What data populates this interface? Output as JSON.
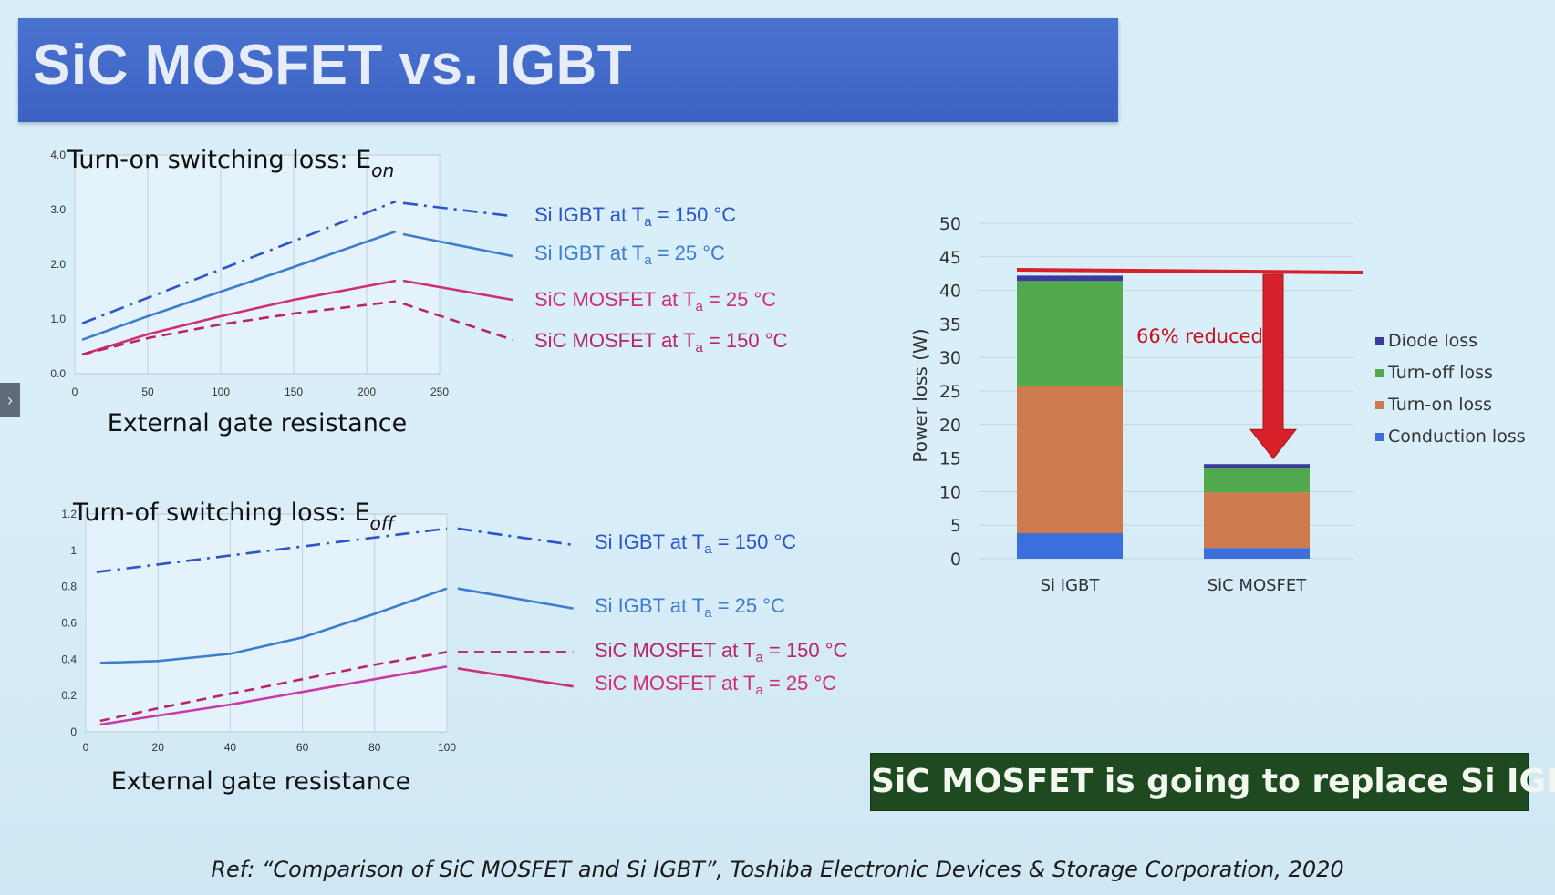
{
  "title": "SiC MOSFET vs. IGBT",
  "side_tab_glyph": "›",
  "callout": "SiC MOSFET is going to replace Si IGBT",
  "reference": "Ref: “Comparison of SiC MOSFET and Si IGBT”, Toshiba Electronic Devices & Storage Corporation, 2020",
  "chart_data": [
    {
      "id": "eon",
      "type": "line",
      "title": "Turn-on switching loss: E",
      "title_sub": "on",
      "xlabel": "External gate resistance",
      "xlim": [
        0,
        250
      ],
      "ylim": [
        0,
        4.0
      ],
      "xticks": [
        "0",
        "50",
        "100",
        "150",
        "200",
        "250"
      ],
      "yticks": [
        "0.0",
        "1.0",
        "2.0",
        "3.0",
        "4.0"
      ],
      "grid": "vertical",
      "series": [
        {
          "name": "Si IGBT at Ta = 150 °C",
          "label_main": "Si IGBT at T",
          "label_tail": " = 150 °C",
          "color": "#2b55c8",
          "dash": "dashdot",
          "x": [
            5,
            220
          ],
          "y": [
            0.92,
            3.15
          ],
          "tail": [
            [
              225,
              3.12
            ],
            [
              300,
              2.88
            ]
          ]
        },
        {
          "name": "Si IGBT at Ta = 25 °C",
          "label_main": "Si IGBT at T",
          "label_tail": " = 25 °C",
          "color": "#3e7ccf",
          "dash": "solid",
          "x": [
            5,
            50,
            100,
            150,
            220
          ],
          "y": [
            0.62,
            1.05,
            1.5,
            1.95,
            2.6
          ],
          "tail": [
            [
              225,
              2.55
            ],
            [
              300,
              2.15
            ]
          ]
        },
        {
          "name": "SiC MOSFET at Ta = 25 °C",
          "label_main": "SiC MOSFET at T",
          "label_tail": " = 25 °C",
          "color": "#d12c7a",
          "dash": "solid",
          "x": [
            5,
            50,
            100,
            150,
            220
          ],
          "y": [
            0.35,
            0.72,
            1.05,
            1.35,
            1.7
          ],
          "tail": [
            [
              225,
              1.7
            ],
            [
              300,
              1.35
            ]
          ]
        },
        {
          "name": "SiC MOSFET at Ta = 150 °C",
          "label_main": "SiC MOSFET at T",
          "label_tail": " = 150 °C",
          "color": "#b8256a",
          "dash": "dashed",
          "x": [
            5,
            50,
            100,
            150,
            220
          ],
          "y": [
            0.35,
            0.65,
            0.9,
            1.1,
            1.32
          ],
          "tail": [
            [
              225,
              1.28
            ],
            [
              300,
              0.62
            ]
          ]
        }
      ]
    },
    {
      "id": "eoff",
      "type": "line",
      "title": "Turn-of switching loss: E",
      "title_sub": "off",
      "xlabel": "External gate resistance",
      "xlim": [
        0,
        100
      ],
      "ylim": [
        0,
        1.2
      ],
      "xticks": [
        "0",
        "20",
        "40",
        "60",
        "80",
        "100"
      ],
      "yticks": [
        "0",
        "0.2",
        "0.4",
        "0.6",
        "0.8",
        "1",
        "1.2"
      ],
      "grid": "vertical",
      "series": [
        {
          "name": "Si IGBT at Ta = 150 °C",
          "label_main": "Si IGBT at T",
          "label_tail": " = 150 °C",
          "color": "#2b55c8",
          "dash": "dashdot",
          "x": [
            3,
            100
          ],
          "y": [
            0.88,
            1.12
          ],
          "tail": [
            [
              103,
              1.12
            ],
            [
              135,
              1.03
            ]
          ]
        },
        {
          "name": "Si IGBT at Ta = 25 °C",
          "label_main": "Si IGBT at T",
          "label_tail": " = 25 °C",
          "color": "#3e7ccf",
          "dash": "solid",
          "x": [
            4,
            20,
            40,
            60,
            80,
            100
          ],
          "y": [
            0.38,
            0.39,
            0.43,
            0.52,
            0.65,
            0.79
          ],
          "tail": [
            [
              103,
              0.79
            ],
            [
              135,
              0.68
            ]
          ]
        },
        {
          "name": "SiC MOSFET at Ta = 150 °C",
          "label_main": "SiC MOSFET at T",
          "label_tail": " = 150 °C",
          "color": "#b8256a",
          "dash": "dashed",
          "x": [
            4,
            20,
            40,
            60,
            80,
            100
          ],
          "y": [
            0.06,
            0.13,
            0.21,
            0.29,
            0.37,
            0.44
          ],
          "tail": [
            [
              103,
              0.44
            ],
            [
              135,
              0.44
            ]
          ]
        },
        {
          "name": "SiC MOSFET at Ta = 25 °C",
          "label_main": "SiC MOSFET at T",
          "label_tail": " = 25 °C",
          "color": "#c93aa8",
          "dash": "solid",
          "x": [
            4,
            20,
            40,
            60,
            80,
            100
          ],
          "y": [
            0.04,
            0.09,
            0.15,
            0.22,
            0.29,
            0.36
          ],
          "tail": [
            [
              103,
              0.35
            ],
            [
              135,
              0.25
            ]
          ],
          "tail_color": "#d12c7a"
        }
      ]
    },
    {
      "id": "power_loss",
      "type": "bar",
      "stacked": true,
      "categories": [
        "Si IGBT",
        "SiC MOSFET"
      ],
      "ylabel": "Power loss (W)",
      "ylim": [
        0,
        50
      ],
      "yticks": [
        "0",
        "5",
        "10",
        "15",
        "20",
        "25",
        "30",
        "35",
        "40",
        "45",
        "50"
      ],
      "grid": "horizontal",
      "legend_position": "right",
      "series": [
        {
          "name": "Conduction loss",
          "color": "#3a6fdc",
          "values": [
            3.8,
            1.6
          ]
        },
        {
          "name": "Turn-on loss",
          "color": "#cd7a4c",
          "values": [
            22,
            8.3
          ]
        },
        {
          "name": "Turn-off loss",
          "color": "#52a84c",
          "values": [
            15.6,
            3.6
          ]
        },
        {
          "name": "Diode loss",
          "color": "#3b3b9c",
          "values": [
            0.8,
            0.6
          ]
        }
      ],
      "reference_line": 42.8,
      "annotation": "66% reduced"
    }
  ]
}
